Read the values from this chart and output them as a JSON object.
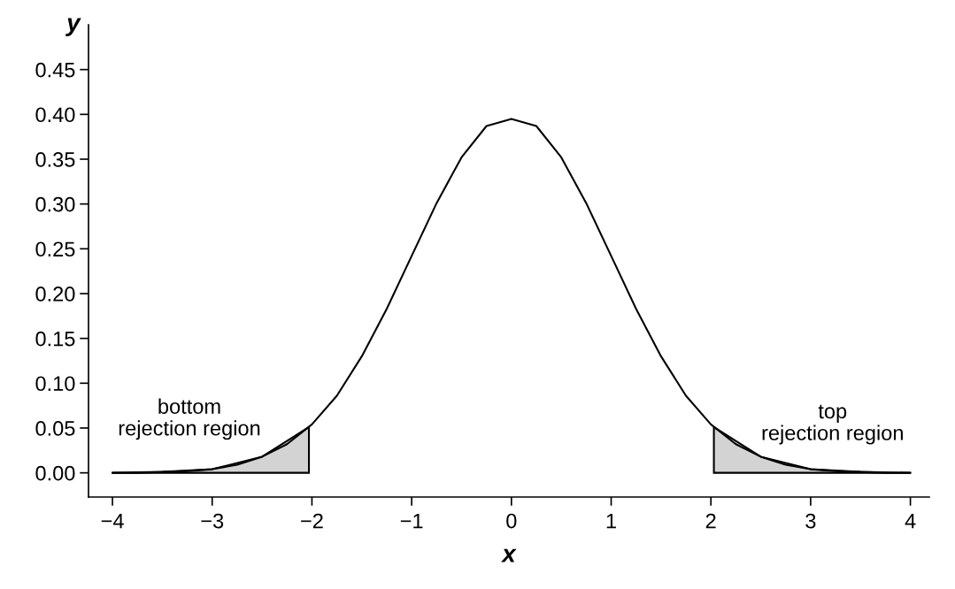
{
  "chart_data": {
    "type": "line",
    "xlabel": "x",
    "ylabel": "y",
    "annotations": [
      "bottom\nrejection region",
      "top\nrejection region"
    ],
    "series": [
      {
        "type": "area",
        "color": "#d3d3d3",
        "x": [
          -4,
          -3.5,
          -3,
          -2.5,
          -2.03
        ],
        "values": [
          0.0,
          0.001,
          0.004,
          0.018,
          0.051
        ]
      },
      {
        "type": "area",
        "color": "#d3d3d3",
        "x": [
          2.03,
          2.5,
          3,
          3.5,
          4
        ],
        "values": [
          0.051,
          0.018,
          0.004,
          0.001,
          0.0
        ]
      },
      {
        "color": "#000000",
        "x": [
          -4,
          -3.75,
          -3.5,
          -3.25,
          -3,
          -2.75,
          -2.5,
          -2.25,
          -2,
          -1.75,
          -1.5,
          -1.25,
          -1,
          -0.75,
          -0.5,
          -0.25,
          0,
          0.25,
          0.5,
          0.75,
          1,
          1.25,
          1.5,
          1.75,
          2,
          2.25,
          2.5,
          2.75,
          3,
          3.25,
          3.5,
          3.75,
          4
        ],
        "values": [
          0.0,
          0.0,
          0.001,
          0.002,
          0.004,
          0.009,
          0.018,
          0.032,
          0.054,
          0.086,
          0.13,
          0.183,
          0.242,
          0.301,
          0.352,
          0.387,
          0.395,
          0.387,
          0.352,
          0.301,
          0.242,
          0.183,
          0.13,
          0.086,
          0.054,
          0.032,
          0.018,
          0.009,
          0.004,
          0.002,
          0.001,
          0.0,
          0.0
        ]
      }
    ],
    "xlim": [
      -4.24,
      4.19
    ],
    "ylim": [
      -0.027,
      0.5
    ],
    "xticks": [
      {
        "value": -4,
        "label": "−4"
      },
      {
        "value": -3,
        "label": "−3"
      },
      {
        "value": -2,
        "label": "−2"
      },
      {
        "value": -1,
        "label": "−1"
      },
      0,
      1,
      2,
      3,
      4
    ],
    "yticks": [
      {
        "value": 0,
        "label": "0.00"
      },
      {
        "value": 0.05,
        "label": "0.05"
      },
      {
        "value": 0.1,
        "label": "0.10"
      },
      {
        "value": 0.15,
        "label": "0.15"
      },
      {
        "value": 0.2,
        "label": "0.20"
      },
      {
        "value": 0.25,
        "label": "0.25"
      },
      {
        "value": 0.3,
        "label": "0.30"
      },
      {
        "value": 0.35,
        "label": "0.35"
      },
      {
        "value": 0.4,
        "label": "0.40"
      },
      {
        "value": 0.45,
        "label": "0.45"
      }
    ],
    "grid": false,
    "legend": false,
    "marker": "none",
    "line_style": "solid"
  }
}
